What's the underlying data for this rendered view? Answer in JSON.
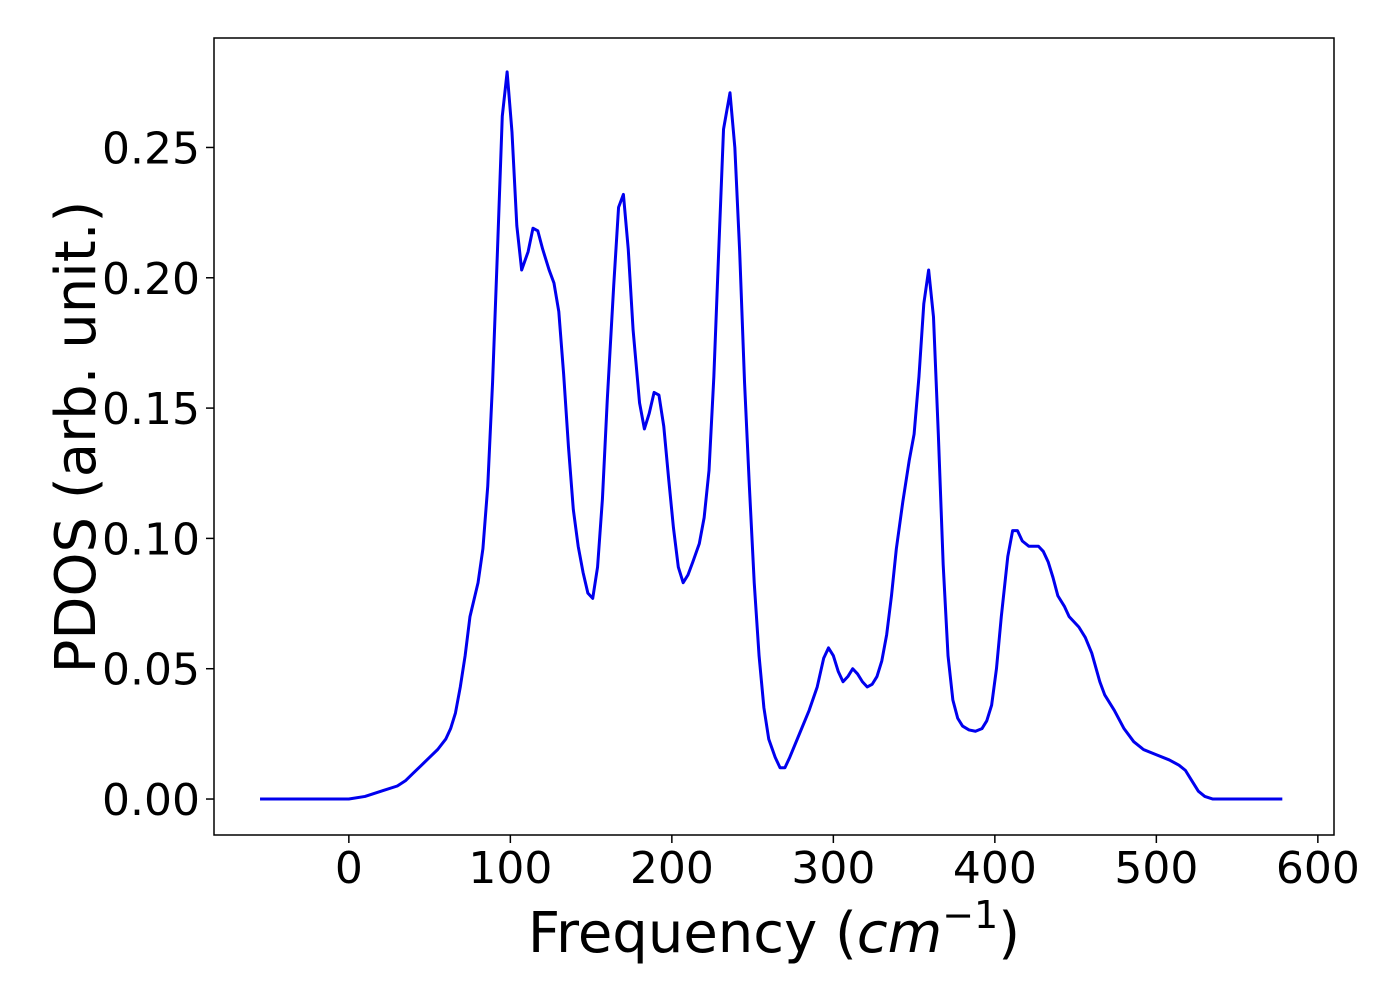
{
  "chart_data": {
    "type": "line",
    "ylabel": "PDOS (arb. unit.)",
    "xlabel": [
      "Frequency (",
      "cm",
      "−1",
      ")"
    ],
    "x": [
      -55,
      0,
      10,
      20,
      30,
      35,
      40,
      45,
      50,
      55,
      60,
      63,
      66,
      69,
      72,
      75,
      80,
      83,
      86,
      89,
      92,
      95,
      98,
      101,
      104,
      107,
      111,
      114,
      117,
      120,
      124,
      127,
      130,
      133,
      136,
      139,
      142,
      145,
      148,
      151,
      154,
      157,
      160,
      164,
      167,
      170,
      173,
      176,
      180,
      183,
      186,
      189,
      192,
      195,
      198,
      201,
      204,
      207,
      210,
      213,
      217,
      220,
      223,
      226,
      229,
      232,
      236,
      239,
      242,
      245,
      248,
      251,
      254,
      257,
      260,
      264,
      267,
      270,
      273,
      279,
      285,
      290,
      294,
      297,
      300,
      303,
      306,
      309,
      312,
      315,
      318,
      321,
      324,
      327,
      330,
      333,
      336,
      339,
      343,
      347,
      350,
      353,
      356,
      359,
      362,
      365,
      368,
      371,
      374,
      377,
      380,
      384,
      388,
      392,
      395,
      398,
      401,
      404,
      408,
      411,
      414,
      417,
      421,
      424,
      427,
      430,
      433,
      436,
      439,
      443,
      446,
      452,
      456,
      460,
      465,
      468,
      474,
      480,
      486,
      492,
      500,
      508,
      514,
      518,
      522,
      526,
      530,
      535,
      578
    ],
    "series": [
      {
        "color": "#0000ee",
        "values": [
          0,
          0,
          0.001,
          0.003,
          0.005,
          0.007,
          0.01,
          0.013,
          0.016,
          0.019,
          0.023,
          0.027,
          0.033,
          0.043,
          0.055,
          0.07,
          0.083,
          0.096,
          0.12,
          0.16,
          0.21,
          0.262,
          0.279,
          0.256,
          0.22,
          0.203,
          0.21,
          0.219,
          0.218,
          0.211,
          0.203,
          0.198,
          0.187,
          0.163,
          0.135,
          0.111,
          0.097,
          0.087,
          0.079,
          0.077,
          0.089,
          0.115,
          0.153,
          0.197,
          0.227,
          0.232,
          0.211,
          0.18,
          0.152,
          0.142,
          0.148,
          0.156,
          0.155,
          0.143,
          0.123,
          0.104,
          0.089,
          0.083,
          0.086,
          0.091,
          0.098,
          0.108,
          0.126,
          0.162,
          0.21,
          0.257,
          0.271,
          0.25,
          0.21,
          0.16,
          0.12,
          0.083,
          0.055,
          0.035,
          0.023,
          0.016,
          0.012,
          0.012,
          0.016,
          0.025,
          0.034,
          0.043,
          0.054,
          0.058,
          0.055,
          0.049,
          0.045,
          0.047,
          0.05,
          0.048,
          0.045,
          0.043,
          0.044,
          0.047,
          0.053,
          0.063,
          0.078,
          0.096,
          0.114,
          0.13,
          0.14,
          0.162,
          0.19,
          0.203,
          0.185,
          0.14,
          0.09,
          0.055,
          0.038,
          0.031,
          0.028,
          0.0265,
          0.026,
          0.027,
          0.03,
          0.036,
          0.05,
          0.07,
          0.093,
          0.103,
          0.103,
          0.099,
          0.097,
          0.097,
          0.097,
          0.095,
          0.091,
          0.085,
          0.078,
          0.074,
          0.07,
          0.066,
          0.062,
          0.056,
          0.045,
          0.04,
          0.034,
          0.027,
          0.022,
          0.019,
          0.017,
          0.015,
          0.013,
          0.011,
          0.007,
          0.003,
          0.001,
          0,
          0
        ]
      }
    ],
    "xlim": [
      -83.5,
      610
    ],
    "ylim": [
      -0.0138,
      0.292
    ],
    "xticks": [
      0,
      100,
      200,
      300,
      400,
      500,
      600
    ],
    "yticks": [
      {
        "value": 0,
        "label": "0.00"
      },
      {
        "value": 0.05,
        "label": "0.05"
      },
      {
        "value": 0.1,
        "label": "0.10"
      },
      {
        "value": 0.15,
        "label": "0.15"
      },
      {
        "value": 0.2,
        "label": "0.20"
      },
      {
        "value": 0.25,
        "label": "0.25"
      }
    ]
  }
}
